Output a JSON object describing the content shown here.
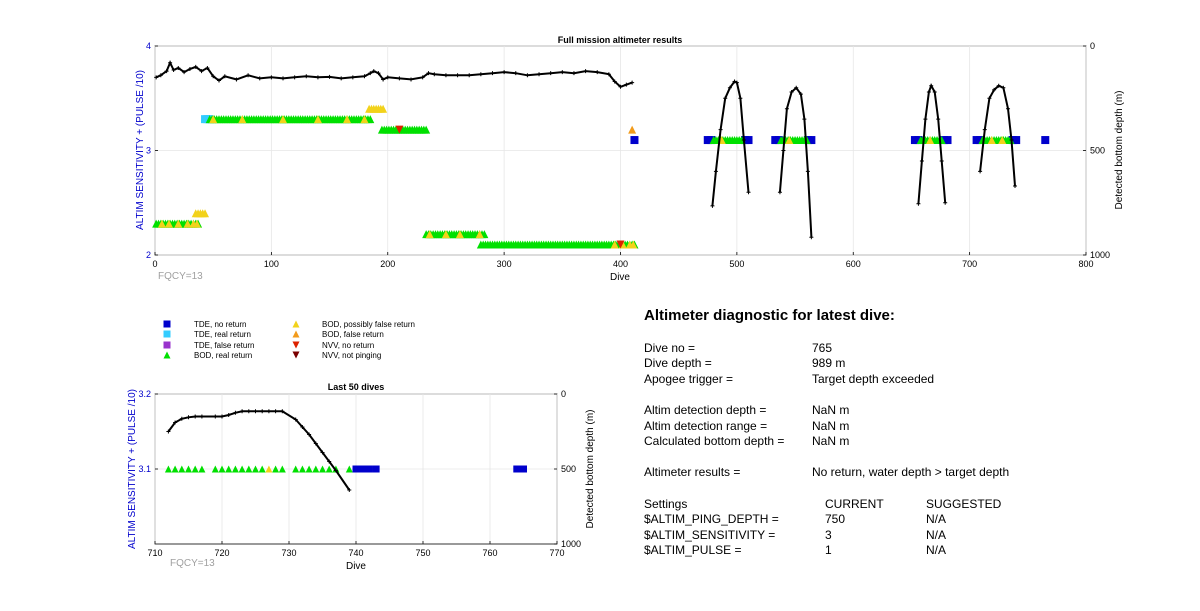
{
  "colors": {
    "tde_no_return": "#0000cc",
    "tde_real_return": "#33ccff",
    "tde_false_return": "#9933cc",
    "bod_real_return": "#00e000",
    "bod_possibly_false_return": "#f2d21b",
    "bod_false_return": "#f29b1b",
    "nvv_no_return": "#dd2200",
    "nvv_not_pinging": "#7a0000",
    "depth_line": "#000000",
    "axis_left": "#0000cc"
  },
  "legend": [
    {
      "label": "TDE, no return",
      "marker": "square",
      "color_key": "tde_no_return"
    },
    {
      "label": "TDE, real return",
      "marker": "square",
      "color_key": "tde_real_return"
    },
    {
      "label": "TDE, false return",
      "marker": "square",
      "color_key": "tde_false_return"
    },
    {
      "label": "BOD, real return",
      "marker": "triangle-up",
      "color_key": "bod_real_return"
    },
    {
      "label": "BOD, possibly false return",
      "marker": "triangle-up",
      "color_key": "bod_possibly_false_return"
    },
    {
      "label": "BOD, false return",
      "marker": "triangle-up",
      "color_key": "bod_false_return"
    },
    {
      "label": "NVV, no return",
      "marker": "triangle-down",
      "color_key": "nvv_no_return"
    },
    {
      "label": "NVV, not pinging",
      "marker": "triangle-down",
      "color_key": "nvv_not_pinging"
    }
  ],
  "diagnostic": {
    "title": "Altimeter diagnostic for latest dive:",
    "rows": [
      {
        "label": "Dive no =",
        "value": "765"
      },
      {
        "label": "Dive depth =",
        "value": "989 m"
      },
      {
        "label": "Apogee trigger =",
        "value": "Target depth exceeded"
      },
      {
        "label": "Altim detection depth =",
        "value": "NaN m"
      },
      {
        "label": "Altim detection range =",
        "value": "NaN m"
      },
      {
        "label": "Calculated bottom depth =",
        "value": "NaN m"
      },
      {
        "label": "Altimeter results =",
        "value": "No return, water depth > target depth"
      }
    ],
    "settings_header": {
      "label": "Settings",
      "current": "CURRENT",
      "suggested": "SUGGESTED"
    },
    "settings": [
      {
        "label": "$ALTIM_PING_DEPTH =",
        "current": "750",
        "suggested": "N/A"
      },
      {
        "label": "$ALTIM_SENSITIVITY =",
        "current": "3",
        "suggested": "N/A"
      },
      {
        "label": "$ALTIM_PULSE =",
        "current": "1",
        "suggested": "N/A"
      }
    ]
  },
  "chart_data": [
    {
      "type": "scatter",
      "title": "Full mission altimeter results",
      "xlabel": "Dive",
      "ylabel": "ALTIM SENSITIVITY + (PULSE /10)",
      "y2label": "Detected bottom depth (m)",
      "annotation": "FQCY=13",
      "xlim": [
        0,
        800
      ],
      "ylim": [
        2,
        4
      ],
      "y2lim": [
        0,
        1000
      ],
      "xticks": [
        "0",
        "100",
        "200",
        "300",
        "400",
        "500",
        "600",
        "700",
        "800"
      ],
      "yticks": [
        "2",
        "3",
        "4"
      ],
      "y2ticks": [
        "0",
        "500",
        "1000"
      ],
      "grid": true,
      "marker_series": [
        {
          "name": "BOD, real return",
          "color_key": "bod_real_return",
          "marker": "triangle-up",
          "y": 2.3,
          "x_from": 1,
          "x_to": 38
        },
        {
          "name": "BOD, possibly false return",
          "color_key": "bod_possibly_false_return",
          "marker": "triangle-up",
          "y": 2.3,
          "x_values": [
            6,
            12,
            20,
            28,
            33,
            36
          ]
        },
        {
          "name": "BOD, possibly false return",
          "color_key": "bod_possibly_false_return",
          "marker": "triangle-up",
          "y": 2.4,
          "x_from": 35,
          "x_to": 43
        },
        {
          "name": "TDE, real return",
          "color_key": "tde_real_return",
          "marker": "square",
          "y": 3.3,
          "x_from": 43,
          "x_to": 47
        },
        {
          "name": "BOD, real return",
          "color_key": "bod_real_return",
          "marker": "triangle-up",
          "y": 3.3,
          "x_from": 47,
          "x_to": 186
        },
        {
          "name": "BOD, possibly false return",
          "color_key": "bod_possibly_false_return",
          "marker": "triangle-up",
          "y": 3.3,
          "x_values": [
            50,
            75,
            110,
            140,
            165,
            180
          ]
        },
        {
          "name": "BOD, possibly false return",
          "color_key": "bod_possibly_false_return",
          "marker": "triangle-up",
          "y": 3.4,
          "x_from": 184,
          "x_to": 196
        },
        {
          "name": "BOD, real return",
          "color_key": "bod_real_return",
          "marker": "triangle-up",
          "y": 3.2,
          "x_from": 195,
          "x_to": 233
        },
        {
          "name": "NVV, no return",
          "color_key": "nvv_no_return",
          "marker": "triangle-down",
          "y": 3.2,
          "x_values": [
            210
          ]
        },
        {
          "name": "BOD, real return",
          "color_key": "bod_real_return",
          "marker": "triangle-up",
          "y": 2.2,
          "x_from": 233,
          "x_to": 283
        },
        {
          "name": "BOD, possibly false return",
          "color_key": "bod_possibly_false_return",
          "marker": "triangle-up",
          "y": 2.2,
          "x_values": [
            236,
            250,
            262,
            279
          ]
        },
        {
          "name": "BOD, real return",
          "color_key": "bod_real_return",
          "marker": "triangle-up",
          "y": 2.1,
          "x_from": 280,
          "x_to": 412
        },
        {
          "name": "BOD, possibly false return",
          "color_key": "bod_possibly_false_return",
          "marker": "triangle-up",
          "y": 2.1,
          "x_values": [
            395,
            402,
            408,
            411
          ]
        },
        {
          "name": "NVV, no return",
          "color_key": "nvv_no_return",
          "marker": "triangle-down",
          "y": 2.1,
          "x_values": [
            400
          ]
        },
        {
          "name": "BOD, false return",
          "color_key": "bod_false_return",
          "marker": "triangle-up",
          "y": 3.2,
          "x_values": [
            410
          ]
        },
        {
          "name": "TDE, no return",
          "color_key": "tde_no_return",
          "marker": "square",
          "y": 3.1,
          "x_values": [
            412,
            475,
            478,
            507,
            510,
            533,
            536,
            561,
            564,
            653,
            656,
            678,
            681,
            706,
            709,
            737,
            740,
            765
          ]
        },
        {
          "name": "BOD, real return",
          "color_key": "bod_real_return",
          "marker": "triangle-up",
          "y": 3.1,
          "x_from": 480,
          "x_to": 505
        },
        {
          "name": "BOD, real return",
          "color_key": "bod_real_return",
          "marker": "triangle-up",
          "y": 3.1,
          "x_from": 538,
          "x_to": 560
        },
        {
          "name": "BOD, real return",
          "color_key": "bod_real_return",
          "marker": "triangle-up",
          "y": 3.1,
          "x_from": 658,
          "x_to": 677
        },
        {
          "name": "BOD, real return",
          "color_key": "bod_real_return",
          "marker": "triangle-up",
          "y": 3.1,
          "x_from": 711,
          "x_to": 736
        },
        {
          "name": "BOD, possibly false return",
          "color_key": "bod_possibly_false_return",
          "marker": "triangle-up",
          "y": 3.1,
          "x_values": [
            487,
            545,
            666,
            719,
            728
          ]
        }
      ],
      "bottom_depth_segments": [
        {
          "x": [
            1,
            5,
            10,
            13,
            16,
            20,
            25,
            30,
            35,
            40,
            45,
            50,
            55,
            60,
            70,
            80,
            90,
            100,
            110,
            120,
            130,
            140,
            150,
            160,
            170,
            180,
            185,
            188,
            192,
            196,
            200,
            210,
            220,
            230,
            235,
            240,
            250,
            260,
            270,
            280,
            290,
            300,
            310,
            320,
            330,
            340,
            350,
            360,
            370,
            380,
            390,
            395,
            400,
            405,
            410
          ],
          "y": [
            150,
            140,
            120,
            80,
            115,
            105,
            125,
            110,
            100,
            120,
            105,
            145,
            165,
            145,
            160,
            140,
            155,
            150,
            155,
            150,
            145,
            150,
            148,
            155,
            150,
            145,
            130,
            120,
            130,
            160,
            150,
            155,
            160,
            150,
            130,
            135,
            140,
            140,
            140,
            135,
            130,
            125,
            130,
            140,
            135,
            130,
            125,
            130,
            120,
            125,
            135,
            170,
            195,
            185,
            175
          ]
        },
        {
          "x": [
            479,
            482,
            486,
            490,
            494,
            498,
            500,
            503,
            506,
            510
          ],
          "y": [
            765,
            600,
            400,
            250,
            200,
            170,
            175,
            250,
            450,
            700
          ]
        },
        {
          "x": [
            537,
            540,
            543,
            547,
            551,
            555,
            558,
            561,
            564
          ],
          "y": [
            700,
            500,
            300,
            220,
            200,
            230,
            350,
            600,
            915
          ]
        },
        {
          "x": [
            656,
            659,
            662,
            665,
            667,
            670,
            673,
            676,
            679
          ],
          "y": [
            755,
            550,
            350,
            220,
            190,
            220,
            350,
            550,
            750
          ]
        },
        {
          "x": [
            709,
            713,
            717,
            721,
            725,
            729,
            733,
            736,
            739
          ],
          "y": [
            600,
            400,
            250,
            210,
            190,
            200,
            300,
            450,
            670
          ]
        }
      ]
    },
    {
      "type": "scatter",
      "title": "Last 50 dives",
      "xlabel": "Dive",
      "ylabel": "ALTIM SENSITIVITY + (PULSE /10)",
      "y2label": "Detected bottom depth (m)",
      "annotation": "FQCY=13",
      "xlim": [
        710,
        770
      ],
      "ylim": [
        3.0,
        3.2
      ],
      "y2lim": [
        0,
        1000
      ],
      "xticks": [
        "710",
        "720",
        "730",
        "740",
        "750",
        "760",
        "770"
      ],
      "yticks": [
        "3.1",
        "3.2"
      ],
      "y2ticks": [
        "0",
        "500",
        "1000"
      ],
      "grid": true,
      "marker_series": [
        {
          "name": "BOD, real return",
          "color_key": "bod_real_return",
          "marker": "triangle-up",
          "y": 3.1,
          "x_values": [
            712,
            713,
            714,
            715,
            716,
            717,
            719,
            720,
            721,
            722,
            723,
            724,
            725,
            726,
            728,
            729,
            731,
            732,
            733,
            734,
            735,
            736,
            737,
            739
          ]
        },
        {
          "name": "BOD, possibly false return",
          "color_key": "bod_possibly_false_return",
          "marker": "triangle-up",
          "y": 3.1,
          "x_values": [
            727
          ]
        },
        {
          "name": "TDE, no return",
          "color_key": "tde_no_return",
          "marker": "square",
          "y": 3.1,
          "x_values": [
            740,
            741,
            742,
            743,
            764,
            765
          ]
        }
      ],
      "bottom_depth_segments": [
        {
          "x": [
            712,
            713,
            714,
            715,
            716,
            717,
            719,
            720,
            721,
            722,
            723,
            724,
            725,
            726,
            727,
            728,
            729,
            731,
            732,
            733,
            734,
            735,
            736,
            737,
            739
          ],
          "y": [
            250,
            190,
            165,
            155,
            150,
            150,
            150,
            150,
            140,
            125,
            115,
            115,
            115,
            115,
            115,
            115,
            115,
            170,
            220,
            270,
            330,
            390,
            450,
            510,
            640
          ]
        }
      ]
    }
  ]
}
